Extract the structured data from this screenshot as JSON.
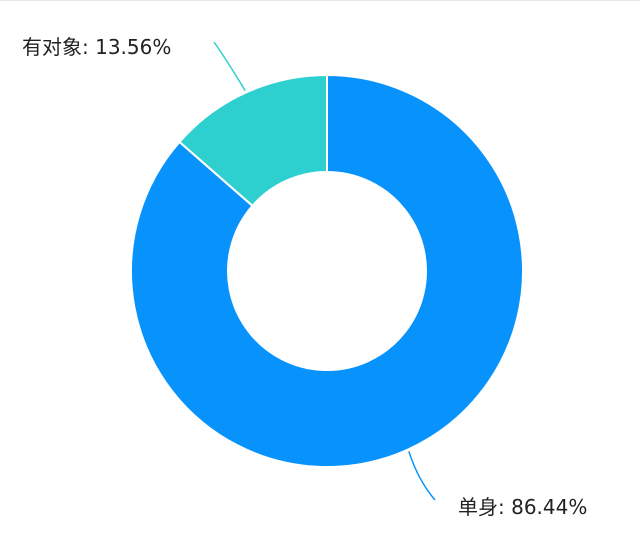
{
  "chart_data": {
    "type": "pie",
    "donut": true,
    "slices": [
      {
        "label": "单身",
        "value": 86.44,
        "display": "单身: 86.44%",
        "color": "#0893FC"
      },
      {
        "label": "有对象",
        "value": 13.56,
        "display": "有对象: 13.56%",
        "color": "#2ECFCF"
      }
    ],
    "title": "",
    "legend": "none",
    "label_placement": "outside with leader lines"
  }
}
